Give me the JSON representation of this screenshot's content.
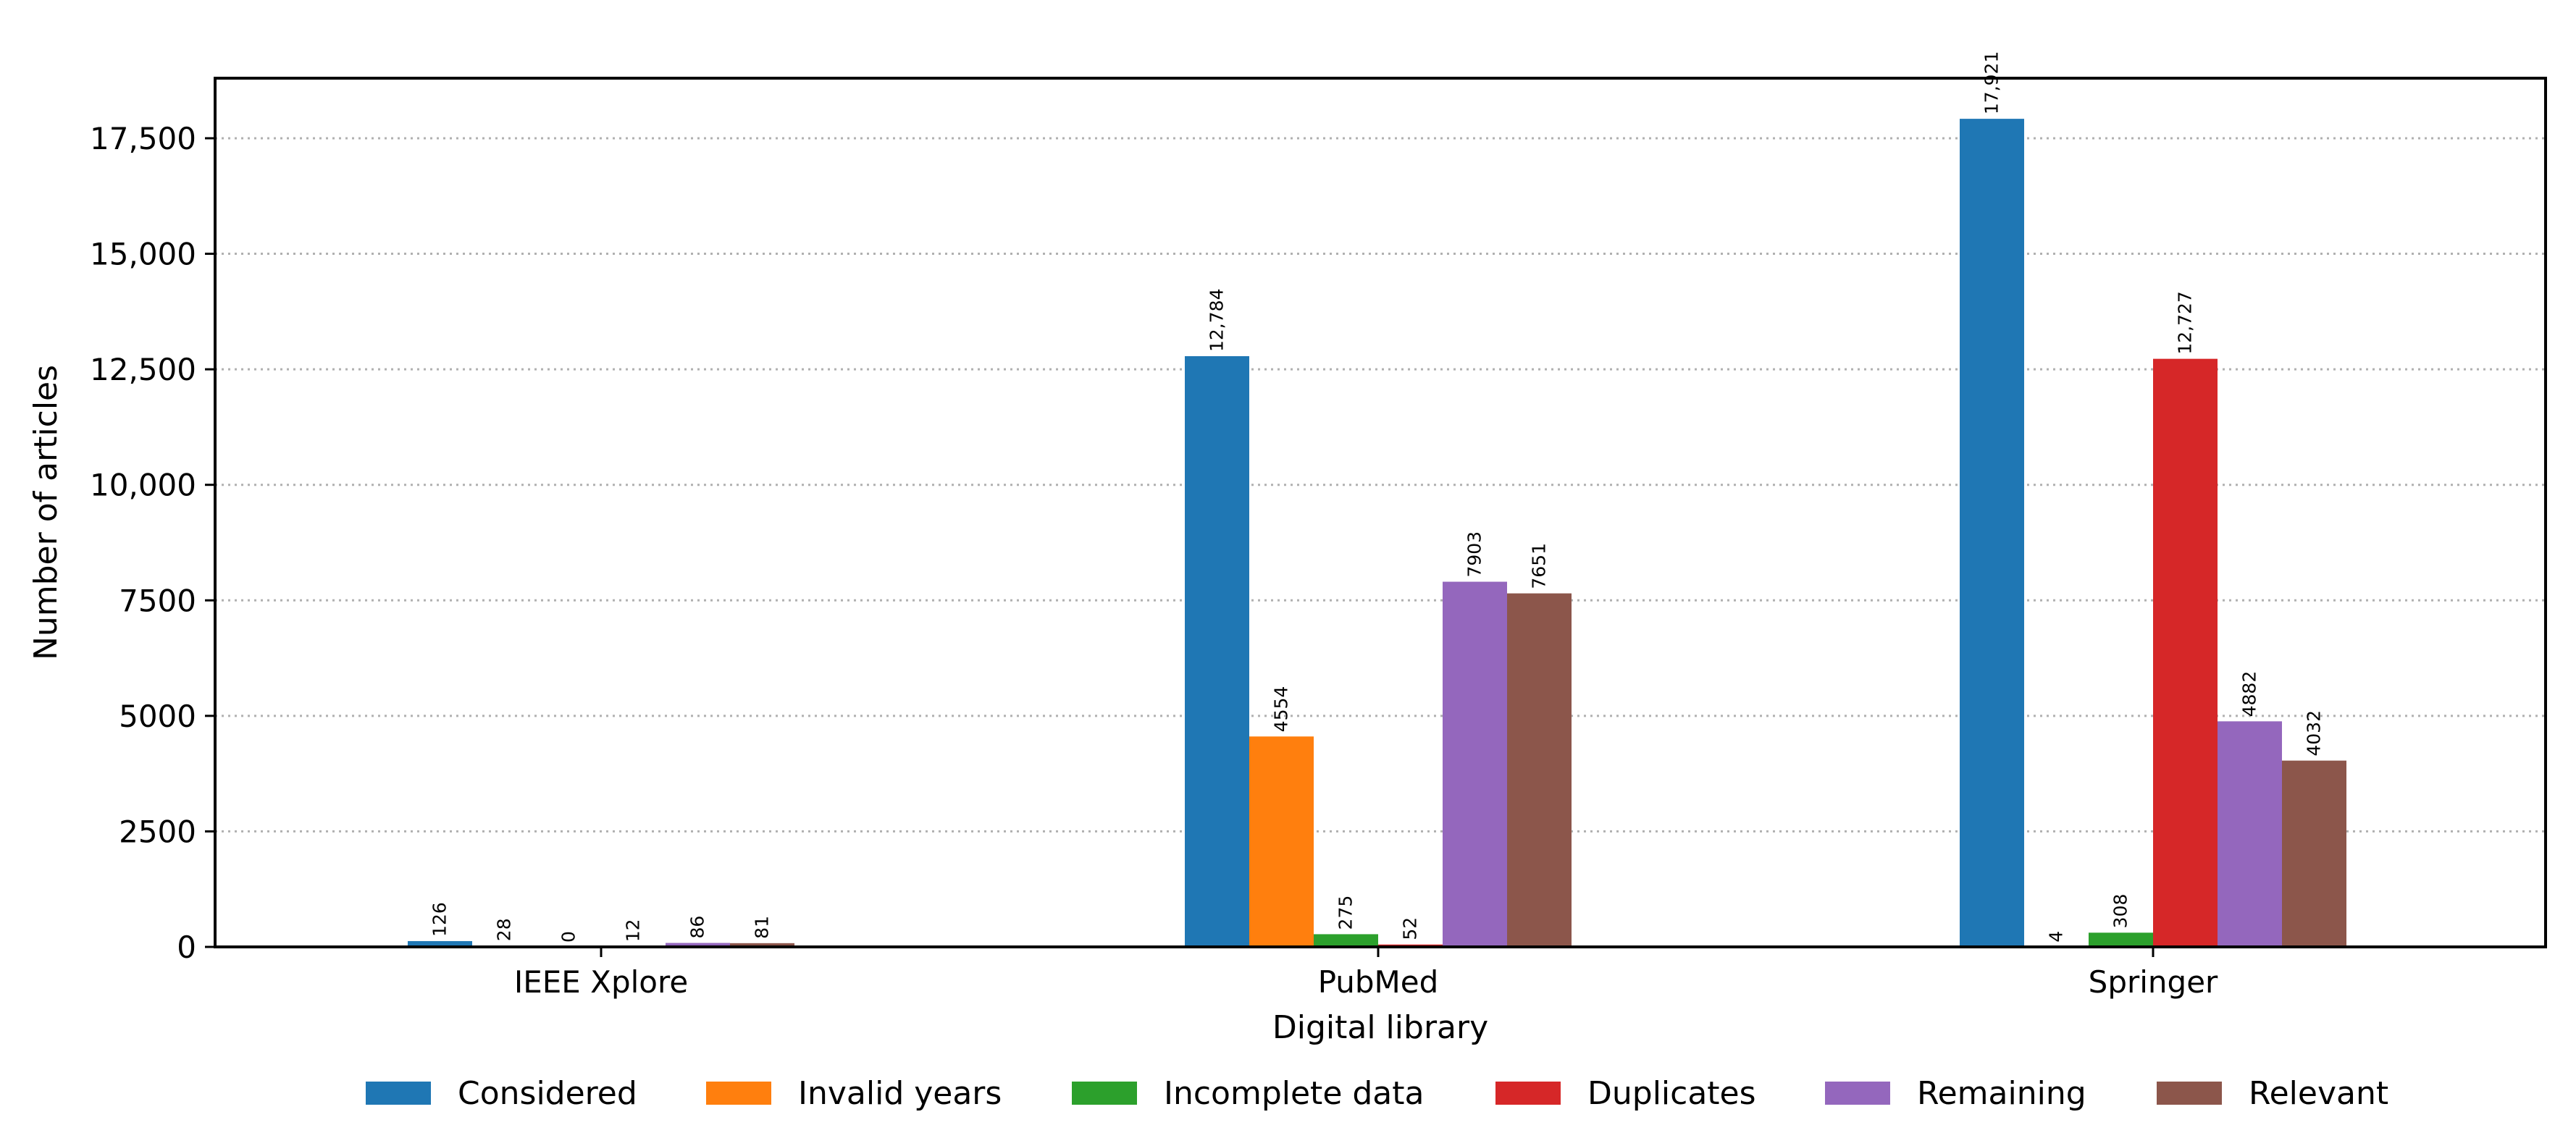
{
  "chart_data": {
    "type": "bar",
    "xlabel": "Digital library",
    "ylabel": "Number of articles",
    "categories": [
      "IEEE Xplore",
      "PubMed",
      "Springer"
    ],
    "ylim": [
      0,
      18800
    ],
    "yticks": [
      0,
      2500,
      5000,
      7500,
      10000,
      12500,
      15000,
      17500
    ],
    "ytick_labels": [
      "0",
      "2500",
      "5000",
      "7500",
      "10,000",
      "12,500",
      "15,000",
      "17,500"
    ],
    "grid": "horizontal dotted",
    "legend_placement": "bottom",
    "series": [
      {
        "name": "Considered",
        "color": "#1f77b4",
        "values": [
          126,
          12784,
          17921
        ],
        "labels": [
          "126",
          "12,784",
          "17,921"
        ]
      },
      {
        "name": "Invalid years",
        "color": "#ff7f0e",
        "values": [
          28,
          4554,
          4
        ],
        "labels": [
          "28",
          "4554",
          "4"
        ]
      },
      {
        "name": "Incomplete data",
        "color": "#2ca02c",
        "values": [
          0,
          275,
          308
        ],
        "labels": [
          "0",
          "275",
          "308"
        ]
      },
      {
        "name": "Duplicates",
        "color": "#d62728",
        "values": [
          12,
          52,
          12727
        ],
        "labels": [
          "12",
          "52",
          "12,727"
        ]
      },
      {
        "name": "Remaining",
        "color": "#9467bd",
        "values": [
          86,
          7903,
          4882
        ],
        "labels": [
          "86",
          "7903",
          "4882"
        ]
      },
      {
        "name": "Relevant",
        "color": "#8c564b",
        "values": [
          81,
          7651,
          4032
        ],
        "labels": [
          "81",
          "7651",
          "4032"
        ]
      }
    ]
  }
}
